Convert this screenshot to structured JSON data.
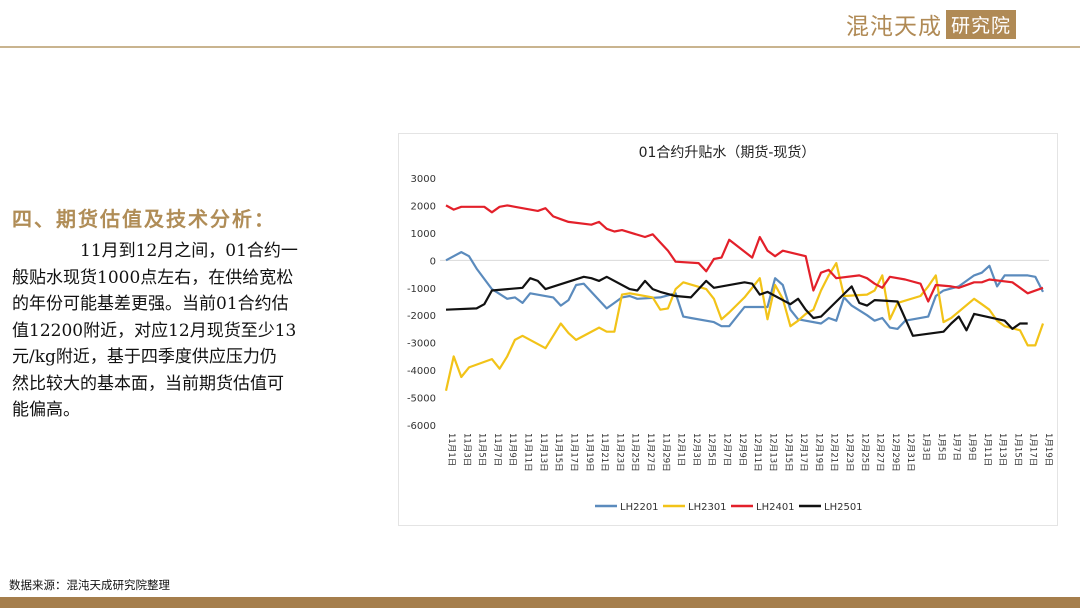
{
  "header": {
    "logo_main": "混沌天成",
    "logo_box": "研究院"
  },
  "section": {
    "title": "四、期货估值及技术分析：",
    "body_lines": [
      "　　　　11月到12月之间，01合约一",
      "般贴水现货1000点左右，在供给宽松",
      "的年份可能基差更强。当前01合约估",
      "值12200附近，对应12月现货至少13",
      "元/kg附近，基于四季度供应压力仍",
      "然比较大的基本面，当前期货估值可",
      "能偏高。"
    ]
  },
  "footer": {
    "source": "数据来源：混沌天成研究院整理"
  },
  "colors": {
    "accent": "#b08d57",
    "footer_bar": "#a57e4c"
  },
  "chart_data": {
    "type": "line",
    "title": "01合约升贴水（期货-现货）",
    "xlabel": "",
    "ylabel": "",
    "ylim": [
      -6000,
      3000
    ],
    "yticks": [
      3000,
      2000,
      1000,
      0,
      -1000,
      -2000,
      -3000,
      -4000,
      -5000,
      -6000
    ],
    "grid": "zero line only",
    "legend": "bottom",
    "categories": [
      "11月1日",
      "11月2日",
      "11月3日",
      "11月4日",
      "11月5日",
      "11月6日",
      "11月7日",
      "11月8日",
      "11月9日",
      "11月10日",
      "11月11日",
      "11月12日",
      "11月13日",
      "11月14日",
      "11月15日",
      "11月16日",
      "11月17日",
      "11月18日",
      "11月19日",
      "11月20日",
      "11月21日",
      "11月22日",
      "11月23日",
      "11月24日",
      "11月25日",
      "11月26日",
      "11月27日",
      "11月28日",
      "11月29日",
      "11月30日",
      "12月1日",
      "12月2日",
      "12月3日",
      "12月4日",
      "12月5日",
      "12月6日",
      "12月7日",
      "12月8日",
      "12月9日",
      "12月10日",
      "12月11日",
      "12月12日",
      "12月13日",
      "12月14日",
      "12月15日",
      "12月16日",
      "12月17日",
      "12月18日",
      "12月19日",
      "12月20日",
      "12月21日",
      "12月22日",
      "12月23日",
      "12月24日",
      "12月25日",
      "12月26日",
      "12月27日",
      "12月28日",
      "12月29日",
      "12月30日",
      "12月31日",
      "1月2日",
      "1月3日",
      "1月4日",
      "1月5日",
      "1月6日",
      "1月7日",
      "1月8日",
      "1月9日",
      "1月10日",
      "1月11日",
      "1月12日",
      "1月13日",
      "1月14日",
      "1月15日",
      "1月16日",
      "1月17日",
      "1月18日",
      "1月19日"
    ],
    "tick_labels": [
      "11月1日",
      "11月3日",
      "11月5日",
      "11月7日",
      "11月9日",
      "11月11日",
      "11月13日",
      "11月15日",
      "11月17日",
      "11月19日",
      "11月21日",
      "11月23日",
      "11月25日",
      "11月27日",
      "11月29日",
      "12月1日",
      "12月3日",
      "12月5日",
      "12月7日",
      "12月9日",
      "12月11日",
      "12月13日",
      "12月15日",
      "12月17日",
      "12月19日",
      "12月21日",
      "12月23日",
      "12月25日",
      "12月27日",
      "12月29日",
      "12月31日",
      "1月3日",
      "1月5日",
      "1月7日",
      "1月9日",
      "1月11日",
      "1月13日",
      "1月15日",
      "1月17日",
      "1月19日"
    ],
    "series": [
      {
        "name": "LH2201",
        "color": "#5b8bbd",
        "points": [
          [
            0,
            0
          ],
          [
            2,
            300
          ],
          [
            3,
            150
          ],
          [
            4,
            -300
          ],
          [
            6,
            -1050
          ],
          [
            8,
            -1400
          ],
          [
            9,
            -1350
          ],
          [
            10,
            -1550
          ],
          [
            11,
            -1200
          ],
          [
            14,
            -1350
          ],
          [
            15,
            -1650
          ],
          [
            16,
            -1450
          ],
          [
            17,
            -900
          ],
          [
            18,
            -850
          ],
          [
            21,
            -1750
          ],
          [
            22,
            -1550
          ],
          [
            23,
            -1350
          ],
          [
            24,
            -1300
          ],
          [
            25,
            -1400
          ],
          [
            28,
            -1350
          ],
          [
            30,
            -1200
          ],
          [
            31,
            -2050
          ],
          [
            32,
            -2100
          ],
          [
            35,
            -2250
          ],
          [
            36,
            -2400
          ],
          [
            37,
            -2400
          ],
          [
            39,
            -1700
          ],
          [
            42,
            -1700
          ],
          [
            43,
            -650
          ],
          [
            44,
            -900
          ],
          [
            45,
            -1800
          ],
          [
            46,
            -2150
          ],
          [
            49,
            -2300
          ],
          [
            50,
            -2100
          ],
          [
            51,
            -2200
          ],
          [
            52,
            -1350
          ],
          [
            53,
            -1650
          ],
          [
            55,
            -2000
          ],
          [
            56,
            -2200
          ],
          [
            57,
            -2100
          ],
          [
            58,
            -2450
          ],
          [
            59,
            -2500
          ],
          [
            60,
            -2200
          ],
          [
            63,
            -2050
          ],
          [
            64,
            -1300
          ],
          [
            65,
            -1100
          ],
          [
            67,
            -950
          ],
          [
            69,
            -550
          ],
          [
            70,
            -450
          ],
          [
            71,
            -200
          ],
          [
            72,
            -950
          ],
          [
            73,
            -550
          ],
          [
            76,
            -550
          ],
          [
            77,
            -600
          ],
          [
            78,
            -1150
          ]
        ]
      },
      {
        "name": "LH2301",
        "color": "#f2c318",
        "points": [
          [
            0,
            -4750
          ],
          [
            1,
            -3500
          ],
          [
            2,
            -4250
          ],
          [
            3,
            -3900
          ],
          [
            6,
            -3600
          ],
          [
            7,
            -3950
          ],
          [
            8,
            -3500
          ],
          [
            9,
            -2900
          ],
          [
            10,
            -2750
          ],
          [
            13,
            -3200
          ],
          [
            14,
            -2750
          ],
          [
            15,
            -2300
          ],
          [
            16,
            -2650
          ],
          [
            17,
            -2900
          ],
          [
            20,
            -2450
          ],
          [
            21,
            -2600
          ],
          [
            22,
            -2600
          ],
          [
            23,
            -1250
          ],
          [
            24,
            -1200
          ],
          [
            27,
            -1350
          ],
          [
            28,
            -1800
          ],
          [
            29,
            -1750
          ],
          [
            30,
            -1050
          ],
          [
            31,
            -800
          ],
          [
            34,
            -1050
          ],
          [
            35,
            -1400
          ],
          [
            36,
            -2150
          ],
          [
            37,
            -1900
          ],
          [
            39,
            -1350
          ],
          [
            40,
            -1000
          ],
          [
            41,
            -650
          ],
          [
            42,
            -2150
          ],
          [
            43,
            -900
          ],
          [
            44,
            -1400
          ],
          [
            45,
            -2400
          ],
          [
            46,
            -2200
          ],
          [
            47,
            -1950
          ],
          [
            48,
            -1800
          ],
          [
            49,
            -1100
          ],
          [
            50,
            -550
          ],
          [
            51,
            -100
          ],
          [
            52,
            -1300
          ],
          [
            55,
            -1250
          ],
          [
            56,
            -1100
          ],
          [
            57,
            -550
          ],
          [
            58,
            -2150
          ],
          [
            59,
            -1550
          ],
          [
            62,
            -1300
          ],
          [
            63,
            -950
          ],
          [
            64,
            -550
          ],
          [
            65,
            -2250
          ],
          [
            66,
            -2100
          ],
          [
            69,
            -1400
          ],
          [
            70,
            -1600
          ],
          [
            71,
            -1800
          ],
          [
            72,
            -2200
          ],
          [
            73,
            -2400
          ],
          [
            75,
            -2550
          ],
          [
            76,
            -3100
          ],
          [
            77,
            -3100
          ],
          [
            78,
            -2300
          ]
        ]
      },
      {
        "name": "LH2401",
        "color": "#e3202a",
        "points": [
          [
            0,
            2000
          ],
          [
            1,
            1850
          ],
          [
            2,
            1950
          ],
          [
            5,
            1950
          ],
          [
            6,
            1750
          ],
          [
            7,
            1950
          ],
          [
            8,
            2000
          ],
          [
            9,
            1950
          ],
          [
            12,
            1800
          ],
          [
            13,
            1900
          ],
          [
            14,
            1600
          ],
          [
            15,
            1500
          ],
          [
            16,
            1400
          ],
          [
            19,
            1300
          ],
          [
            20,
            1400
          ],
          [
            21,
            1150
          ],
          [
            22,
            1050
          ],
          [
            23,
            1100
          ],
          [
            26,
            850
          ],
          [
            27,
            950
          ],
          [
            28,
            650
          ],
          [
            29,
            350
          ],
          [
            30,
            -50
          ],
          [
            33,
            -100
          ],
          [
            34,
            -400
          ],
          [
            35,
            50
          ],
          [
            36,
            100
          ],
          [
            37,
            750
          ],
          [
            40,
            100
          ],
          [
            41,
            850
          ],
          [
            42,
            350
          ],
          [
            43,
            150
          ],
          [
            44,
            350
          ],
          [
            47,
            150
          ],
          [
            48,
            -1100
          ],
          [
            49,
            -450
          ],
          [
            50,
            -350
          ],
          [
            51,
            -650
          ],
          [
            54,
            -550
          ],
          [
            55,
            -650
          ],
          [
            56,
            -850
          ],
          [
            57,
            -1000
          ],
          [
            58,
            -600
          ],
          [
            60,
            -700
          ],
          [
            62,
            -850
          ],
          [
            63,
            -1500
          ],
          [
            64,
            -900
          ],
          [
            66,
            -950
          ],
          [
            67,
            -1000
          ],
          [
            69,
            -800
          ],
          [
            70,
            -800
          ],
          [
            71,
            -700
          ],
          [
            74,
            -800
          ],
          [
            76,
            -1200
          ],
          [
            78,
            -1000
          ]
        ]
      },
      {
        "name": "LH2501",
        "color": "#111111",
        "points": [
          [
            0,
            -1800
          ],
          [
            4,
            -1750
          ],
          [
            5,
            -1600
          ],
          [
            6,
            -1100
          ],
          [
            10,
            -1000
          ],
          [
            11,
            -650
          ],
          [
            12,
            -750
          ],
          [
            13,
            -1050
          ],
          [
            18,
            -600
          ],
          [
            19,
            -650
          ],
          [
            20,
            -750
          ],
          [
            21,
            -600
          ],
          [
            24,
            -1050
          ],
          [
            25,
            -1100
          ],
          [
            26,
            -750
          ],
          [
            27,
            -1050
          ],
          [
            28,
            -1150
          ],
          [
            30,
            -1300
          ],
          [
            32,
            -1350
          ],
          [
            34,
            -750
          ],
          [
            35,
            -1000
          ],
          [
            38,
            -850
          ],
          [
            39,
            -800
          ],
          [
            40,
            -850
          ],
          [
            41,
            -1250
          ],
          [
            42,
            -1150
          ],
          [
            45,
            -1600
          ],
          [
            46,
            -1400
          ],
          [
            47,
            -1800
          ],
          [
            48,
            -2100
          ],
          [
            49,
            -2050
          ],
          [
            53,
            -950
          ],
          [
            54,
            -1550
          ],
          [
            55,
            -1650
          ],
          [
            56,
            -1450
          ],
          [
            59,
            -1500
          ],
          [
            61,
            -2750
          ],
          [
            65,
            -2600
          ],
          [
            66,
            -2300
          ],
          [
            67,
            -2050
          ],
          [
            68,
            -2550
          ],
          [
            69,
            -1950
          ],
          [
            73,
            -2200
          ],
          [
            74,
            -2500
          ],
          [
            75,
            -2300
          ],
          [
            76,
            -2300
          ]
        ]
      }
    ]
  }
}
